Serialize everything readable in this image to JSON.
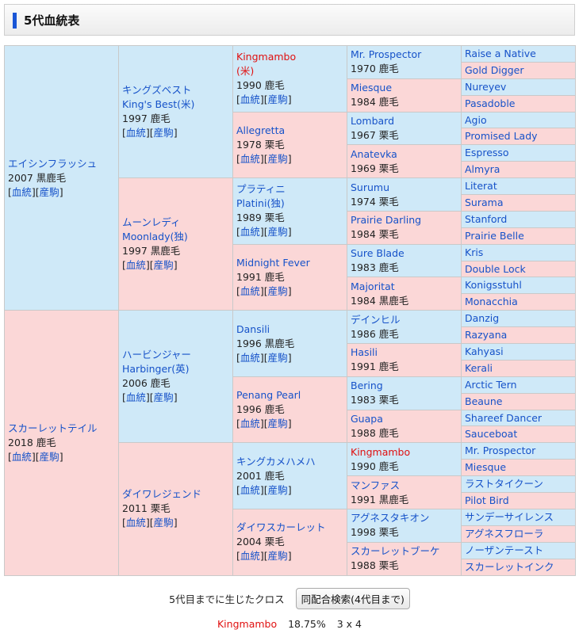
{
  "title": "5代血統表",
  "link_pedigree": "血統",
  "link_foals": "産駒",
  "gen1": [
    {
      "name": "エイシンフラッシュ",
      "info": "2007 黒鹿毛",
      "sex": "m"
    },
    {
      "name": "スカーレットテイル",
      "info": "2018 鹿毛",
      "sex": "f"
    }
  ],
  "gen2": [
    {
      "name": "キングズベスト",
      "name2": "King's Best(米)",
      "info": "1997 鹿毛",
      "sex": "m"
    },
    {
      "name": "ムーンレディ",
      "name2": "Moonlady(独)",
      "info": "1997 黒鹿毛",
      "sex": "f"
    },
    {
      "name": "ハービンジャー",
      "name2": "Harbinger(英)",
      "info": "2006 鹿毛",
      "sex": "m"
    },
    {
      "name": "ダイワレジェンド",
      "name2": "",
      "info": "2011 栗毛",
      "sex": "f"
    }
  ],
  "gen3": [
    {
      "name": "Kingmambo",
      "name2": "(米)",
      "info": "1990 鹿毛",
      "sex": "m",
      "red": true
    },
    {
      "name": "Allegretta",
      "name2": "",
      "info": "1978 栗毛",
      "sex": "f"
    },
    {
      "name": "プラティニ",
      "name2": "Platini(独)",
      "info": "1989 栗毛",
      "sex": "m"
    },
    {
      "name": "Midnight Fever",
      "name2": "",
      "info": "1991 鹿毛",
      "sex": "f"
    },
    {
      "name": "Dansili",
      "name2": "",
      "info": "1996 黒鹿毛",
      "sex": "m"
    },
    {
      "name": "Penang Pearl",
      "name2": "",
      "info": "1996 鹿毛",
      "sex": "f"
    },
    {
      "name": "キングカメハメハ",
      "name2": "",
      "info": "2001 鹿毛",
      "sex": "m"
    },
    {
      "name": "ダイワスカーレット",
      "name2": "",
      "info": "2004 栗毛",
      "sex": "f"
    }
  ],
  "gen4": [
    {
      "name": "Mr. Prospector",
      "info": "1970 鹿毛",
      "sex": "m"
    },
    {
      "name": "Miesque",
      "info": "1984 鹿毛",
      "sex": "f"
    },
    {
      "name": "Lombard",
      "info": "1967 栗毛",
      "sex": "m"
    },
    {
      "name": "Anatevka",
      "info": "1969 栗毛",
      "sex": "f"
    },
    {
      "name": "Surumu",
      "info": "1974 栗毛",
      "sex": "m"
    },
    {
      "name": "Prairie Darling",
      "info": "1984 栗毛",
      "sex": "f"
    },
    {
      "name": "Sure Blade",
      "info": "1983 鹿毛",
      "sex": "m"
    },
    {
      "name": "Majoritat",
      "info": "1984 黒鹿毛",
      "sex": "f"
    },
    {
      "name": "デインヒル",
      "info": "1986 鹿毛",
      "sex": "m"
    },
    {
      "name": "Hasili",
      "info": "1991 鹿毛",
      "sex": "f"
    },
    {
      "name": "Bering",
      "info": "1983 栗毛",
      "sex": "m"
    },
    {
      "name": "Guapa",
      "info": "1988 鹿毛",
      "sex": "f"
    },
    {
      "name": "Kingmambo",
      "info": "1990 鹿毛",
      "sex": "m",
      "red": true
    },
    {
      "name": "マンファス",
      "info": "1991 黒鹿毛",
      "sex": "f"
    },
    {
      "name": "アグネスタキオン",
      "info": "1998 栗毛",
      "sex": "m"
    },
    {
      "name": "スカーレットブーケ",
      "info": "1988 栗毛",
      "sex": "f"
    }
  ],
  "gen5": [
    {
      "name": "Raise a Native",
      "sex": "m"
    },
    {
      "name": "Gold Digger",
      "sex": "f"
    },
    {
      "name": "Nureyev",
      "sex": "m"
    },
    {
      "name": "Pasadoble",
      "sex": "f"
    },
    {
      "name": "Agio",
      "sex": "m"
    },
    {
      "name": "Promised Lady",
      "sex": "f"
    },
    {
      "name": "Espresso",
      "sex": "m"
    },
    {
      "name": "Almyra",
      "sex": "f"
    },
    {
      "name": "Literat",
      "sex": "m"
    },
    {
      "name": "Surama",
      "sex": "f"
    },
    {
      "name": "Stanford",
      "sex": "m"
    },
    {
      "name": "Prairie Belle",
      "sex": "f"
    },
    {
      "name": "Kris",
      "sex": "m"
    },
    {
      "name": "Double Lock",
      "sex": "f"
    },
    {
      "name": "Konigsstuhl",
      "sex": "m"
    },
    {
      "name": "Monacchia",
      "sex": "f"
    },
    {
      "name": "Danzig",
      "sex": "m"
    },
    {
      "name": "Razyana",
      "sex": "f"
    },
    {
      "name": "Kahyasi",
      "sex": "m"
    },
    {
      "name": "Kerali",
      "sex": "f"
    },
    {
      "name": "Arctic Tern",
      "sex": "m"
    },
    {
      "name": "Beaune",
      "sex": "f"
    },
    {
      "name": "Shareef Dancer",
      "sex": "m"
    },
    {
      "name": "Sauceboat",
      "sex": "f"
    },
    {
      "name": "Mr. Prospector",
      "sex": "m"
    },
    {
      "name": "Miesque",
      "sex": "f"
    },
    {
      "name": "ラストタイクーン",
      "sex": "m"
    },
    {
      "name": "Pilot Bird",
      "sex": "f"
    },
    {
      "name": "サンデーサイレンス",
      "sex": "m"
    },
    {
      "name": "アグネスフローラ",
      "sex": "f"
    },
    {
      "name": "ノーザンテースト",
      "sex": "m"
    },
    {
      "name": "スカーレットインク",
      "sex": "f"
    }
  ],
  "cross": {
    "label": "5代目までに生じたクロス",
    "button": "同配合検索(4代目まで)",
    "horse": "Kingmambo",
    "percent": "18.75%",
    "pattern": "3 x 4"
  }
}
